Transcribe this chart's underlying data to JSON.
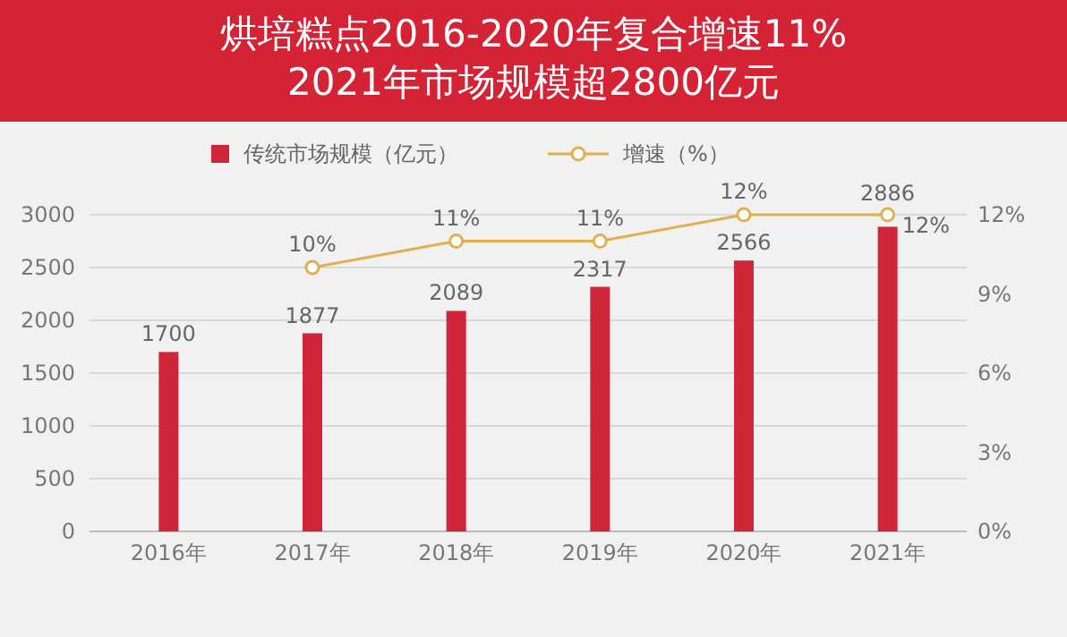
{
  "chart_data": {
    "type": "bar",
    "title": "烘培糕点2016-2020年复合增速11%\n2021年市场规模超2800亿元",
    "categories": [
      "2016年",
      "2017年",
      "2018年",
      "2019年",
      "2020年",
      "2021年"
    ],
    "series": [
      {
        "name": "传统市场规模（亿元）",
        "color": "#d0263a",
        "values": [
          1700,
          1877,
          2089,
          2317,
          2566,
          2886
        ],
        "value_labels": [
          "1700",
          "1877",
          "2089",
          "2317",
          "2566",
          "2886"
        ]
      },
      {
        "name": "增速（%）",
        "type": "line",
        "axis": "y2",
        "color": "#e0b050",
        "values": [
          null,
          10,
          11,
          11,
          12,
          12
        ],
        "value_labels": [
          null,
          "10%",
          "11%",
          "11%",
          "12%",
          "12%"
        ]
      }
    ],
    "ylim": [
      0,
      3000
    ],
    "yticks": [
      0,
      500,
      1000,
      1500,
      2000,
      2500,
      3000
    ],
    "y2lim": [
      0,
      12
    ],
    "y2ticks": [
      {
        "value": 0,
        "label": "0%"
      },
      {
        "value": 3,
        "label": "3%"
      },
      {
        "value": 6,
        "label": "6%"
      },
      {
        "value": 9,
        "label": "9%"
      },
      {
        "value": 12,
        "label": "12%"
      }
    ],
    "grid": "y",
    "legend": "top",
    "marker": "circle"
  }
}
